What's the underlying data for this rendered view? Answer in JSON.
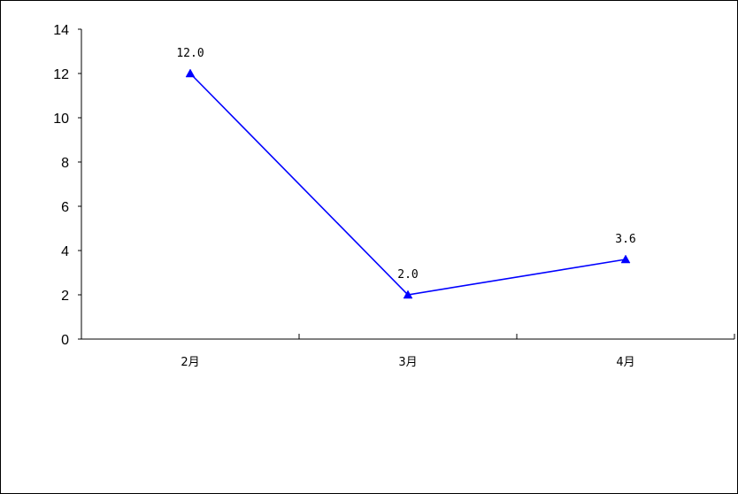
{
  "chart_data": {
    "type": "line",
    "categories": [
      "2月",
      "3月",
      "4月"
    ],
    "values": [
      12.0,
      2.0,
      3.6
    ],
    "data_labels": [
      "12.0",
      "2.0",
      "3.6"
    ],
    "ylim": [
      0,
      14
    ],
    "y_ticks": [
      "0",
      "2",
      "4",
      "6",
      "8",
      "10",
      "12",
      "14"
    ],
    "y_tick_values": [
      0,
      2,
      4,
      6,
      8,
      10,
      12,
      14
    ],
    "grid": false,
    "marker": "triangle",
    "line_color": "#0000FF",
    "marker_color": "#0000FF"
  }
}
